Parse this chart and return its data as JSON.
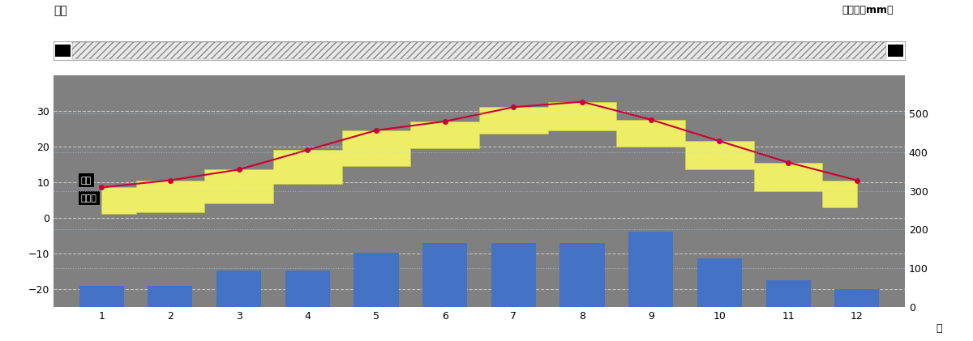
{
  "months": [
    1,
    2,
    3,
    4,
    5,
    6,
    7,
    8,
    9,
    10,
    11,
    12
  ],
  "month_labels": [
    "1",
    "2",
    "3",
    "4",
    "5",
    "6",
    "7",
    "8",
    "9",
    "10",
    "11",
    "12"
  ],
  "temp_high": [
    8.5,
    10.5,
    13.5,
    19.0,
    24.5,
    27.0,
    31.0,
    32.5,
    27.5,
    21.5,
    15.5,
    10.5
  ],
  "temp_low": [
    1.0,
    1.5,
    4.0,
    9.5,
    14.5,
    19.5,
    23.5,
    24.5,
    20.0,
    13.5,
    7.5,
    3.0
  ],
  "precip": [
    55,
    55,
    95,
    95,
    140,
    165,
    165,
    165,
    195,
    125,
    70,
    45
  ],
  "bg_color": "#808080",
  "bar_color": "#4472C4",
  "line_color": "#CC0033",
  "fill_color": "#EEEE66",
  "fill_edge_color": "#CCCC44",
  "title": "気温",
  "right_label": "降水量（mm）",
  "xlabel": "月",
  "left_ylim": [
    -25,
    40
  ],
  "right_ylim": [
    0,
    600
  ],
  "left_yticks": [
    -20,
    -10,
    0,
    10,
    20,
    30
  ],
  "right_yticks": [
    0,
    100,
    200,
    300,
    400,
    500
  ],
  "grid_color_solid": "#FFFFFF",
  "grid_color_dotted": "#AADDFF",
  "grid_alpha": 0.55,
  "hatching": "////",
  "legend_line_label": "気温",
  "legend_bar_label": "降水量"
}
